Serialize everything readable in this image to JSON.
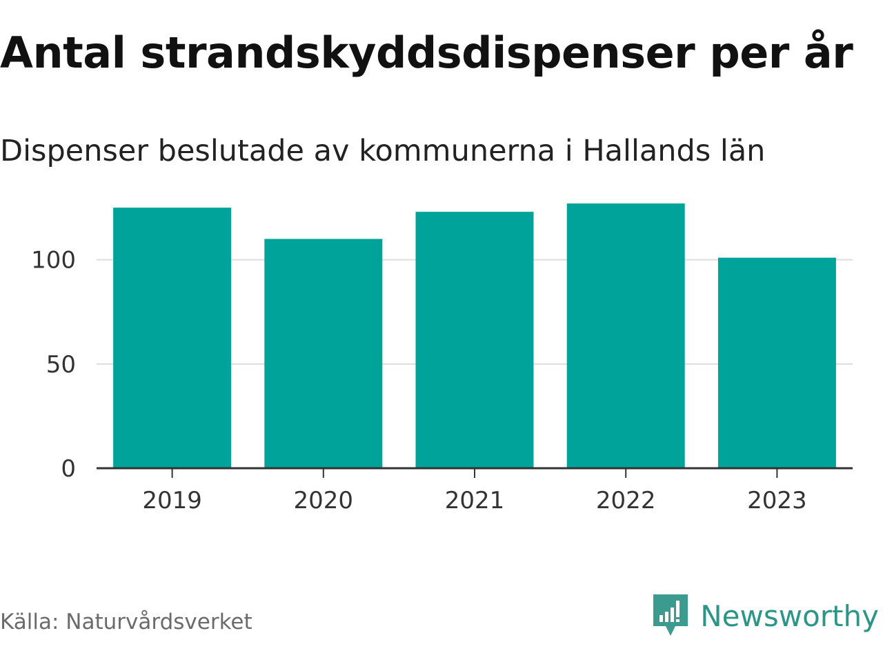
{
  "title": "Antal strandskyddsdispenser per år",
  "subtitle": "Dispenser beslutade av kommunerna i Hallands län",
  "source": "Källa: Naturvårdsverket",
  "brand": {
    "name": "Newsworthy",
    "icon": "newsworthy-logo-icon",
    "color": "#2b9688"
  },
  "chart_data": {
    "type": "bar",
    "title": "Antal strandskyddsdispenser per år",
    "subtitle": "Dispenser beslutade av kommunerna i Hallands län",
    "xlabel": "",
    "ylabel": "",
    "categories": [
      "2019",
      "2020",
      "2021",
      "2022",
      "2023"
    ],
    "values": [
      125,
      110,
      123,
      127,
      101
    ],
    "ylim": [
      0,
      130
    ],
    "yticks": [
      0,
      50,
      100
    ],
    "grid": true,
    "bar_color": "#00a39a",
    "grid_color": "#dddddd",
    "axis_color": "#333333"
  }
}
